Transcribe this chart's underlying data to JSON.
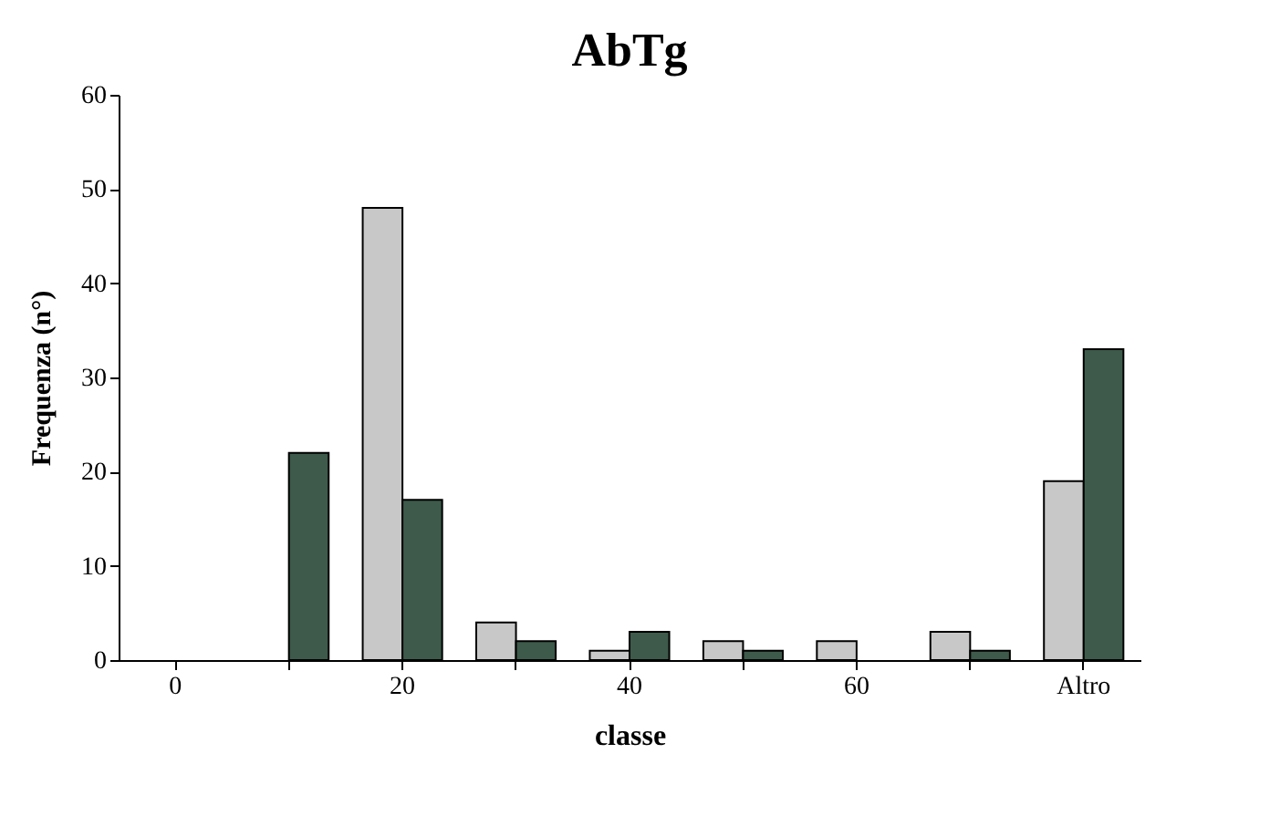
{
  "chart_data": {
    "type": "bar",
    "title": "AbTg",
    "xlabel": "classe",
    "ylabel": "Frequenza (n°)",
    "categories": [
      "0",
      null,
      "20",
      null,
      "40",
      null,
      "60",
      null,
      "Altro"
    ],
    "series": [
      {
        "color": "#c8c8c8",
        "values": [
          0,
          0,
          48,
          4,
          1,
          2,
          2,
          3,
          19
        ]
      },
      {
        "color": "#3d5a4a",
        "values": [
          0,
          22,
          17,
          2,
          3,
          1,
          0,
          1,
          33
        ]
      }
    ],
    "ylim": [
      0,
      60
    ],
    "yticks": [
      0,
      10,
      20,
      30,
      40,
      50,
      60
    ],
    "grid": false
  }
}
